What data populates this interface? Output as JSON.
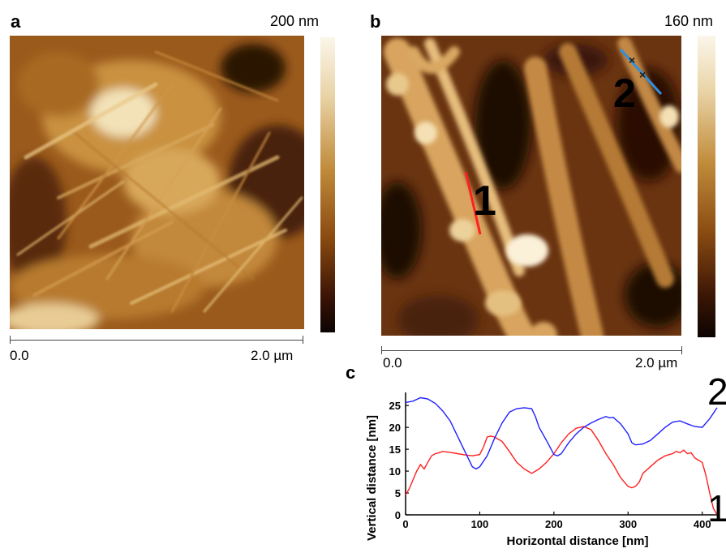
{
  "panel_a": {
    "letter": "a",
    "z_scale": "200 nm",
    "scalebar_start": "0.0",
    "scalebar_end": "2.0 µm"
  },
  "panel_b": {
    "letter": "b",
    "z_scale": "160 nm",
    "scalebar_start": "0.0",
    "scalebar_end": "2.0 µm",
    "profile_markers": [
      "1",
      "2"
    ]
  },
  "panel_c": {
    "letter": "c"
  },
  "colors": {
    "profile_1": "#ff2020",
    "profile_2": "#2020ff",
    "profile_2_line_on_image": "#2f8fe0"
  },
  "chart_data": {
    "type": "line",
    "xlabel": "Horizontal distance [nm]",
    "ylabel": "Vertical distance [nm]",
    "xlim": [
      0,
      420
    ],
    "ylim": [
      0,
      28
    ],
    "xticks": [
      0,
      100,
      200,
      300,
      400
    ],
    "yticks": [
      0,
      5,
      10,
      15,
      20,
      25
    ],
    "series": [
      {
        "name": "1",
        "color": "#ff2020",
        "x": [
          0,
          5,
          10,
          15,
          20,
          25,
          30,
          35,
          40,
          45,
          50,
          60,
          70,
          80,
          90,
          100,
          105,
          110,
          115,
          120,
          130,
          140,
          150,
          160,
          170,
          180,
          190,
          200,
          210,
          220,
          230,
          240,
          250,
          260,
          270,
          280,
          290,
          300,
          305,
          310,
          315,
          320,
          330,
          340,
          350,
          360,
          365,
          370,
          375,
          380,
          385,
          390,
          395,
          400,
          405,
          410,
          415,
          420
        ],
        "y": [
          4.5,
          6,
          8,
          10,
          11.5,
          10.5,
          12,
          13.5,
          14,
          14.2,
          14.5,
          14.3,
          14,
          13.7,
          13.5,
          13.8,
          15.5,
          17.8,
          18,
          17.8,
          16.8,
          14.5,
          12,
          10.5,
          9.5,
          10.5,
          12,
          14,
          16.5,
          18.5,
          19.8,
          20.2,
          19.5,
          17,
          14,
          11.5,
          8.5,
          6.5,
          6.2,
          6.5,
          7.5,
          9.5,
          11,
          12.5,
          13.5,
          14,
          14.5,
          14.2,
          14.8,
          14,
          14.2,
          13,
          12.5,
          12,
          9,
          5,
          1.5,
          0
        ]
      },
      {
        "name": "2",
        "color": "#2020ff",
        "x": [
          0,
          10,
          20,
          30,
          40,
          50,
          60,
          70,
          80,
          90,
          95,
          100,
          110,
          120,
          130,
          140,
          150,
          160,
          170,
          175,
          180,
          190,
          200,
          205,
          210,
          220,
          230,
          240,
          250,
          260,
          270,
          275,
          280,
          290,
          300,
          305,
          310,
          320,
          330,
          340,
          350,
          360,
          370,
          380,
          390,
          400,
          410,
          420
        ],
        "y": [
          25.7,
          26,
          26.8,
          26.5,
          25.5,
          23.8,
          21.5,
          18,
          14.5,
          11,
          10.5,
          11,
          13.5,
          17.5,
          21,
          23.5,
          24.3,
          24.5,
          24.3,
          22.5,
          20,
          17,
          13.8,
          13.5,
          14,
          16.5,
          18.5,
          20,
          21,
          21.8,
          22.5,
          22.2,
          22.3,
          20.8,
          18.5,
          16.5,
          16,
          16.2,
          17,
          18.5,
          20,
          21.2,
          21.5,
          20.8,
          20.2,
          20,
          22,
          24.5
        ]
      }
    ]
  }
}
